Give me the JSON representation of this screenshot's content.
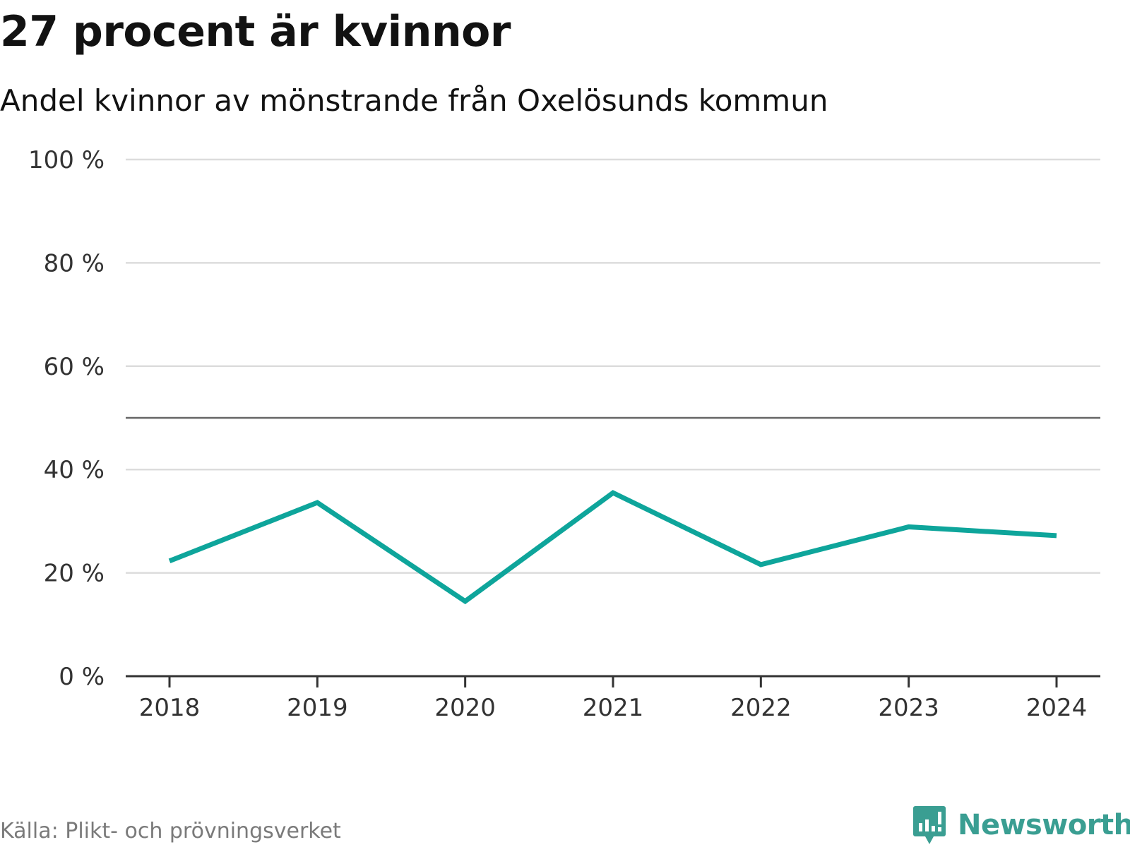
{
  "title": "27 procent är kvinnor",
  "subtitle": "Andel kvinnor av mönstrande från Oxelösunds kommun",
  "source": "Källa: Plikt- och prövningsverket",
  "brand": {
    "name": "Newsworthy",
    "logo_icon": "newsworthy-logo-icon",
    "color": "#3a9e92"
  },
  "colors": {
    "line": "#0ea59b",
    "grid": "#dcdcdc",
    "reference": "#666666",
    "axis": "#333333"
  },
  "chart_data": {
    "type": "line",
    "x": [
      "2018",
      "2019",
      "2020",
      "2021",
      "2022",
      "2023",
      "2024"
    ],
    "series": [
      {
        "name": "Andel kvinnor",
        "values": [
          22.3,
          33.6,
          14.5,
          35.5,
          21.6,
          28.9,
          27.2
        ]
      }
    ],
    "ylim": [
      0,
      100
    ],
    "yticks": [
      0,
      20,
      40,
      60,
      80,
      100
    ],
    "ytick_labels": [
      "0 %",
      "20 %",
      "40 %",
      "60 %",
      "80 %",
      "100 %"
    ],
    "reference_line": 50,
    "xlabel": "",
    "ylabel": "",
    "grid": true,
    "legend": "none"
  }
}
